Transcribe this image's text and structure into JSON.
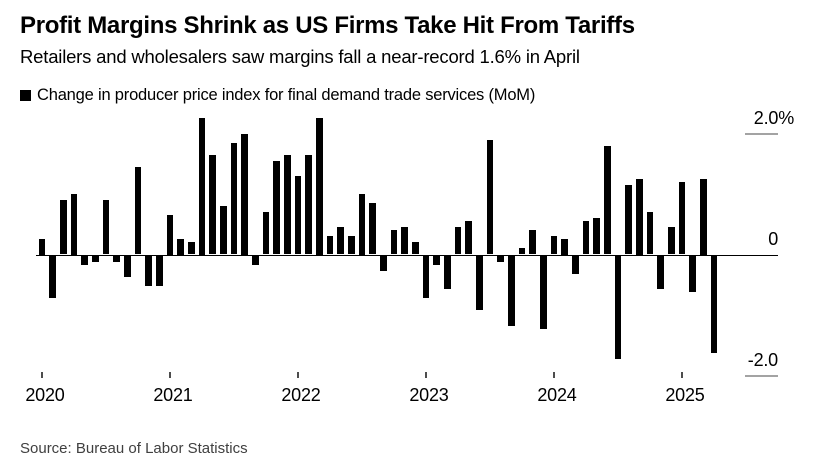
{
  "header": {
    "title": "Profit Margins Shrink as US Firms Take Hit From Tariffs",
    "subtitle": "Retailers and wholesalers saw margins fall a near-record 1.6% in April"
  },
  "legend": {
    "label": "Change in producer price index for final demand trade services (MoM)",
    "marker_color": "#000000"
  },
  "source": {
    "text": "Source: Bureau of Labor Statistics"
  },
  "chart_data": {
    "type": "bar",
    "title": "Profit Margins Shrink as US Firms Take Hit From Tariffs",
    "subtitle": "Retailers and wholesalers saw margins fall a near-record 1.6% in April",
    "series_name": "Change in producer price index for final demand trade services (MoM)",
    "unit": "% MoM",
    "x_start": "2020-01",
    "x_frequency": "monthly",
    "values": [
      0.25,
      -0.7,
      0.9,
      1.0,
      -0.15,
      -0.1,
      0.9,
      -0.1,
      -0.35,
      1.45,
      -0.5,
      -0.5,
      0.65,
      0.25,
      0.2,
      2.25,
      1.65,
      0.8,
      1.85,
      2.0,
      -0.15,
      0.7,
      1.55,
      1.65,
      1.3,
      1.65,
      2.25,
      0.3,
      0.45,
      0.3,
      1.0,
      0.85,
      -0.25,
      0.4,
      0.45,
      0.2,
      -0.7,
      -0.15,
      -0.55,
      0.45,
      0.55,
      -0.9,
      1.9,
      -0.1,
      -1.15,
      0.1,
      0.4,
      -1.2,
      0.3,
      0.25,
      -0.3,
      0.55,
      0.6,
      1.8,
      -1.7,
      1.15,
      1.25,
      0.7,
      -0.55,
      0.45,
      1.2,
      -0.6,
      1.25,
      -1.6
    ],
    "x_tick_labels": [
      "2020",
      "2021",
      "2022",
      "2023",
      "2024",
      "2025"
    ],
    "y_ticks": [
      {
        "label": "2.0%",
        "value": 2.0
      },
      {
        "label": "0",
        "value": 0
      },
      {
        "label": "-2.0",
        "value": -2.0
      }
    ],
    "ylim": [
      -2.4,
      2.4
    ],
    "bar_color": "#000000",
    "grid": "right-edge ticks at +2 and -2 only",
    "legend_position": "top-left",
    "xlabel": "",
    "ylabel": ""
  }
}
